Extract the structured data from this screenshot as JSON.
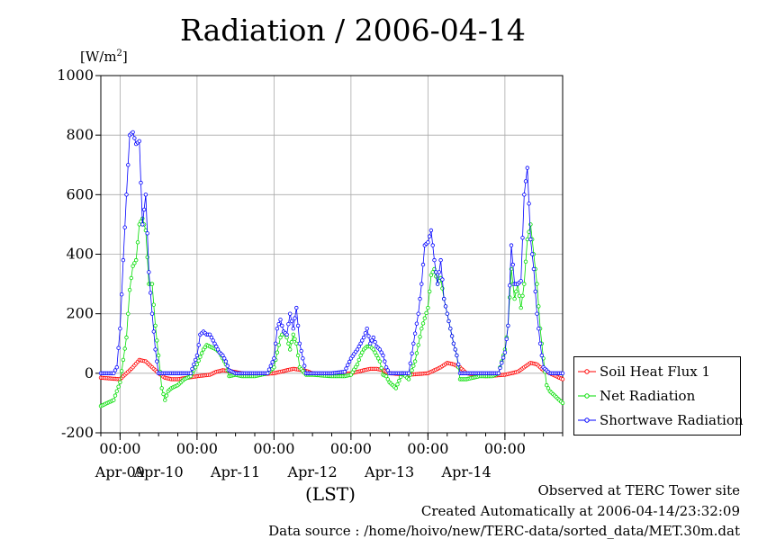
{
  "title": "Radiation / 2006-04-14",
  "unit_label": "[W/m",
  "unit_sup": "2",
  "unit_close": "]",
  "xaxis_label": "(LST)",
  "footer": {
    "line1": "Observed at TERC Tower site",
    "line2": "Created Automatically at 2006-04-14/23:32:09",
    "line3": "Data source : /home/hoivo/new/TERC-data/sorted_data/MET.30m.dat"
  },
  "colors": {
    "soil": "#ff0000",
    "net": "#00dd00",
    "shortwave": "#0000ff"
  },
  "chart_data": {
    "type": "line",
    "title": "Radiation / 2006-04-14",
    "ylabel": "[W/m2]",
    "xlabel": "(LST)",
    "ylim": [
      -200,
      1000
    ],
    "yticks": [
      -200,
      0,
      200,
      400,
      600,
      800,
      1000
    ],
    "xlim": [
      0,
      144
    ],
    "x_unit": "hours since Apr-08 18:00 LST",
    "day_labels": [
      "Apr-09",
      "Apr-10",
      "Apr-11",
      "Apr-12",
      "Apr-13",
      "Apr-14"
    ],
    "midnight_tick_label": "00:00",
    "grid": true,
    "legend_position": "right-outside",
    "series": [
      {
        "name": "Soil Heat Flux 1",
        "color": "#ff0000",
        "x": [
          0,
          6,
          8,
          10,
          12,
          14,
          16,
          18,
          20,
          22,
          24,
          30,
          34,
          36,
          38,
          40,
          44,
          48,
          54,
          58,
          60,
          62,
          64,
          66,
          72,
          78,
          82,
          84,
          86,
          88,
          90,
          96,
          102,
          106,
          108,
          110,
          112,
          114,
          120,
          126,
          130,
          132,
          134,
          136,
          138,
          144
        ],
        "y": [
          -15,
          -20,
          0,
          20,
          45,
          40,
          20,
          0,
          -15,
          -20,
          -20,
          -10,
          -5,
          5,
          10,
          8,
          0,
          -5,
          0,
          10,
          15,
          12,
          8,
          0,
          -5,
          0,
          10,
          15,
          15,
          10,
          0,
          -5,
          0,
          20,
          35,
          30,
          20,
          0,
          -10,
          -5,
          5,
          20,
          35,
          30,
          10,
          -20
        ]
      },
      {
        "name": "Net Radiation",
        "color": "#00dd00",
        "x": [
          0,
          4,
          6,
          8,
          9,
          10,
          11,
          12,
          13,
          14,
          15,
          16,
          17,
          18,
          19,
          20,
          21,
          22,
          24,
          26,
          28,
          30,
          32,
          33,
          34,
          35,
          36,
          37,
          38,
          39,
          40,
          42,
          44,
          48,
          52,
          54,
          56,
          57,
          58,
          59,
          60,
          61,
          62,
          64,
          66,
          72,
          76,
          78,
          80,
          81,
          82,
          83,
          84,
          85,
          86,
          87,
          88,
          89,
          90,
          92,
          94,
          96,
          98,
          100,
          102,
          103,
          104,
          105,
          106,
          107,
          108,
          109,
          110,
          111,
          112,
          114,
          116,
          118,
          120,
          122,
          124,
          126,
          127,
          128,
          129,
          130,
          131,
          132,
          133,
          134,
          135,
          136,
          137,
          138,
          139,
          140,
          142,
          144
        ],
        "y": [
          -110,
          -90,
          -30,
          120,
          280,
          360,
          380,
          500,
          520,
          480,
          300,
          300,
          160,
          60,
          -50,
          -90,
          -60,
          -50,
          -40,
          -20,
          -10,
          30,
          80,
          95,
          90,
          85,
          80,
          70,
          50,
          30,
          -10,
          -5,
          -10,
          -10,
          0,
          20,
          120,
          140,
          120,
          80,
          130,
          100,
          20,
          -5,
          -5,
          -10,
          -10,
          -5,
          30,
          60,
          80,
          90,
          90,
          80,
          60,
          40,
          -5,
          -10,
          -30,
          -50,
          0,
          -20,
          40,
          150,
          220,
          330,
          350,
          300,
          320,
          250,
          200,
          150,
          100,
          60,
          -20,
          -20,
          -15,
          -10,
          -10,
          -10,
          0,
          80,
          160,
          350,
          250,
          300,
          220,
          300,
          450,
          500,
          400,
          300,
          150,
          50,
          -40,
          -60,
          -80,
          -100
        ]
      },
      {
        "name": "Shortwave Radiation",
        "color": "#0000ff",
        "x": [
          0,
          4,
          5,
          6,
          7,
          8,
          9,
          10,
          11,
          12,
          13,
          14,
          15,
          16,
          17,
          18,
          19,
          20,
          22,
          24,
          28,
          30,
          31,
          32,
          33,
          34,
          35,
          36,
          37,
          38,
          39,
          40,
          41,
          42,
          44,
          48,
          52,
          54,
          55,
          56,
          57,
          58,
          59,
          60,
          61,
          62,
          63,
          64,
          66,
          72,
          76,
          78,
          80,
          81,
          82,
          83,
          84,
          85,
          86,
          87,
          88,
          89,
          90,
          92,
          96,
          99,
          100,
          101,
          102,
          103,
          104,
          105,
          106,
          107,
          108,
          109,
          110,
          111,
          112,
          114,
          118,
          120,
          124,
          126,
          127,
          128,
          129,
          130,
          131,
          132,
          133,
          134,
          135,
          136,
          137,
          138,
          140,
          144
        ],
        "y": [
          0,
          0,
          20,
          150,
          380,
          600,
          800,
          810,
          770,
          780,
          500,
          600,
          340,
          200,
          80,
          0,
          0,
          0,
          0,
          0,
          0,
          60,
          130,
          140,
          130,
          130,
          110,
          90,
          70,
          60,
          40,
          10,
          5,
          0,
          0,
          0,
          0,
          50,
          150,
          180,
          140,
          130,
          200,
          150,
          220,
          100,
          50,
          0,
          0,
          0,
          5,
          50,
          80,
          100,
          120,
          150,
          100,
          120,
          90,
          80,
          60,
          20,
          0,
          0,
          0,
          200,
          300,
          430,
          440,
          480,
          380,
          300,
          380,
          250,
          200,
          150,
          100,
          60,
          0,
          0,
          0,
          0,
          0,
          70,
          160,
          430,
          300,
          300,
          310,
          600,
          690,
          450,
          350,
          200,
          100,
          20,
          0,
          0
        ]
      }
    ]
  }
}
